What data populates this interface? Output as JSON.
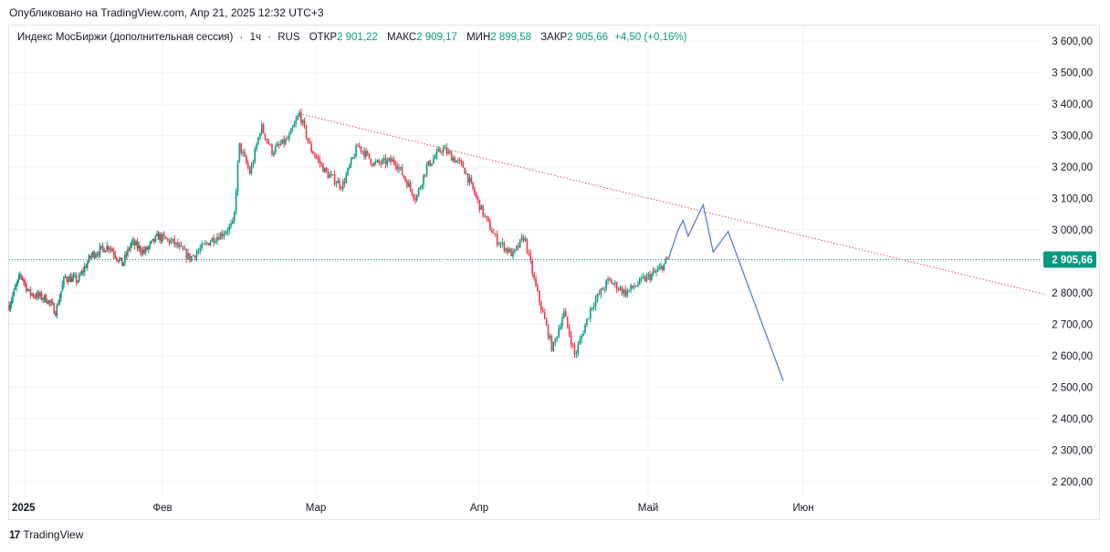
{
  "header": {
    "published": "Опубликовано на TradingView.com, Апр 21, 2025 12:32 UTC+3"
  },
  "legend": {
    "symbol": "Индекс МосБиржи (дополнительная сессия)",
    "interval": "1ч",
    "exchange": "RUS",
    "open_label": "ОТКР",
    "open": "2 901,22",
    "high_label": "МАКС",
    "high": "2 909,17",
    "low_label": "МИН",
    "low": "2 899,58",
    "close_label": "ЗАКР",
    "close": "2 905,66",
    "change": "+4,50 (+0,16%)"
  },
  "footer": {
    "brand": "TradingView"
  },
  "colors": {
    "up": "#089981",
    "down": "#f23645",
    "projection": "#4a72e0",
    "trendline": "#d9505b",
    "last_price_line": "#089981",
    "grid": "#f0f3fa"
  },
  "chart_data": {
    "type": "candlestick",
    "interval": "1h",
    "y_axis_side": "right",
    "ylim": [
      2150,
      3650
    ],
    "y_ticks": [
      "2 200,00",
      "2 300,00",
      "2 400,00",
      "2 500,00",
      "2 600,00",
      "2 700,00",
      "2 800,00",
      "2 900,00",
      "3 000,00",
      "3 100,00",
      "3 200,00",
      "3 300,00",
      "3 400,00",
      "3 500,00",
      "3 600,00"
    ],
    "y_tick_values": [
      2200,
      2300,
      2400,
      2500,
      2600,
      2700,
      2800,
      2900,
      3000,
      3100,
      3200,
      3300,
      3400,
      3500,
      3600
    ],
    "x_ticks": [
      {
        "label": "2025",
        "date": "2025-01-01",
        "bold": true
      },
      {
        "label": "Фев",
        "date": "2025-02-01"
      },
      {
        "label": "Мар",
        "date": "2025-03-01"
      },
      {
        "label": "Апр",
        "date": "2025-04-01"
      },
      {
        "label": "Май",
        "date": "2025-05-01"
      },
      {
        "label": "Июн",
        "date": "2025-06-01"
      }
    ],
    "last_price": 2905.66,
    "last_price_label": "2 905,66",
    "price_path": [
      [
        "2024-12-28",
        2760
      ],
      [
        "2024-12-31",
        2860
      ],
      [
        "2025-01-02",
        2800
      ],
      [
        "2025-01-06",
        2780
      ],
      [
        "2025-01-08",
        2740
      ],
      [
        "2025-01-10",
        2850
      ],
      [
        "2025-01-13",
        2840
      ],
      [
        "2025-01-16",
        2920
      ],
      [
        "2025-01-20",
        2950
      ],
      [
        "2025-01-23",
        2890
      ],
      [
        "2025-01-25",
        2960
      ],
      [
        "2025-01-28",
        2930
      ],
      [
        "2025-01-31",
        2980
      ],
      [
        "2025-02-03",
        2960
      ],
      [
        "2025-02-06",
        2910
      ],
      [
        "2025-02-10",
        2970
      ],
      [
        "2025-02-12",
        2990
      ],
      [
        "2025-02-14",
        3020
      ],
      [
        "2025-02-15",
        3270
      ],
      [
        "2025-02-17",
        3180
      ],
      [
        "2025-02-19",
        3330
      ],
      [
        "2025-02-21",
        3250
      ],
      [
        "2025-02-24",
        3290
      ],
      [
        "2025-02-26",
        3370
      ],
      [
        "2025-02-28",
        3260
      ],
      [
        "2025-03-03",
        3180
      ],
      [
        "2025-03-06",
        3140
      ],
      [
        "2025-03-09",
        3270
      ],
      [
        "2025-03-12",
        3210
      ],
      [
        "2025-03-16",
        3220
      ],
      [
        "2025-03-20",
        3100
      ],
      [
        "2025-03-22",
        3200
      ],
      [
        "2025-03-25",
        3260
      ],
      [
        "2025-03-29",
        3200
      ],
      [
        "2025-04-02",
        3040
      ],
      [
        "2025-04-04",
        2970
      ],
      [
        "2025-04-07",
        2920
      ],
      [
        "2025-04-09",
        2980
      ],
      [
        "2025-04-11",
        2820
      ],
      [
        "2025-04-14",
        2620
      ],
      [
        "2025-04-16",
        2740
      ],
      [
        "2025-04-18",
        2600
      ],
      [
        "2025-04-21",
        2760
      ],
      [
        "2025-04-24",
        2840
      ],
      [
        "2025-04-27",
        2800
      ],
      [
        "2025-04-30",
        2840
      ],
      [
        "2025-05-03",
        2870
      ],
      [
        "2025-05-05",
        2905.66
      ]
    ],
    "projection": [
      [
        "2025-05-05",
        2905.66
      ],
      [
        "2025-05-07",
        3000
      ],
      [
        "2025-05-08",
        3030
      ],
      [
        "2025-05-09",
        2980
      ],
      [
        "2025-05-12",
        3080
      ],
      [
        "2025-05-14",
        2930
      ],
      [
        "2025-05-17",
        2995
      ],
      [
        "2025-05-28",
        2520
      ]
    ],
    "trendline": [
      [
        "2025-02-26",
        3370
      ],
      [
        "2025-07-06",
        2795
      ]
    ]
  }
}
